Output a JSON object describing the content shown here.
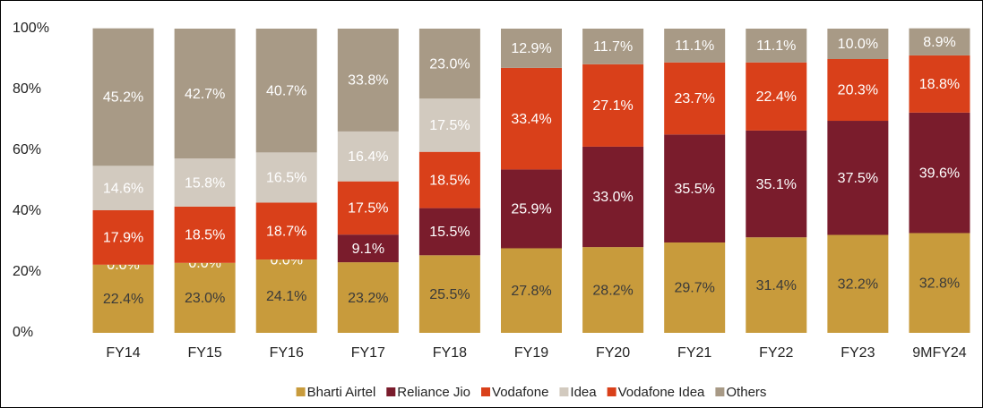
{
  "chart_data": {
    "type": "stacked_bar",
    "categories": [
      "FY14",
      "FY15",
      "FY16",
      "FY17",
      "FY18",
      "FY19",
      "FY20",
      "FY21",
      "FY22",
      "FY23",
      "9MFY24"
    ],
    "series": [
      {
        "name": "Bharti Airtel",
        "color": "#c89b3c",
        "label_color": "#3a3a3a",
        "values": [
          22.4,
          23.0,
          24.1,
          23.2,
          25.5,
          27.8,
          28.2,
          29.7,
          31.4,
          32.2,
          32.8
        ],
        "value_labels": [
          "22.4%",
          "23.0%",
          "24.1%",
          "23.2%",
          "25.5%",
          "27.8%",
          "28.2%",
          "29.7%",
          "31.4%",
          "32.2%",
          "32.8%"
        ]
      },
      {
        "name": "Reliance Jio",
        "color": "#7a1c2c",
        "label_color": "#ffffff",
        "values": [
          0.0,
          0.0,
          0.0,
          9.1,
          15.5,
          25.9,
          33.0,
          35.5,
          35.1,
          37.5,
          39.6
        ],
        "value_labels": [
          "0.0%",
          "0.0%",
          "0.0%",
          "9.1%",
          "15.5%",
          "25.9%",
          "33.0%",
          "35.5%",
          "35.1%",
          "37.5%",
          "39.6%"
        ]
      },
      {
        "name": "Vodafone",
        "color": "#d9401a",
        "label_color": "#ffffff",
        "values": [
          17.9,
          18.5,
          18.7,
          17.5,
          18.5,
          null,
          null,
          null,
          null,
          null,
          null
        ],
        "value_labels": [
          "17.9%",
          "18.5%",
          "18.7%",
          "17.5%",
          "18.5%",
          null,
          null,
          null,
          null,
          null,
          null
        ]
      },
      {
        "name": "Idea",
        "color": "#d2cabf",
        "label_color": "#ffffff",
        "values": [
          14.6,
          15.8,
          16.5,
          16.4,
          17.5,
          null,
          null,
          null,
          null,
          null,
          null
        ],
        "value_labels": [
          "14.6%",
          "15.8%",
          "16.5%",
          "16.4%",
          "17.5%",
          null,
          null,
          null,
          null,
          null,
          null
        ]
      },
      {
        "name": "Vodafone Idea",
        "color": "#d9401a",
        "label_color": "#ffffff",
        "values": [
          null,
          null,
          null,
          null,
          null,
          33.4,
          27.1,
          23.7,
          22.4,
          20.3,
          18.8
        ],
        "value_labels": [
          null,
          null,
          null,
          null,
          null,
          "33.4%",
          "27.1%",
          "23.7%",
          "22.4%",
          "20.3%",
          "18.8%"
        ]
      },
      {
        "name": "Others",
        "color": "#a89a86",
        "label_color": "#ffffff",
        "values": [
          45.2,
          42.7,
          40.7,
          33.8,
          23.0,
          12.9,
          11.7,
          11.1,
          11.1,
          10.0,
          8.9
        ],
        "value_labels": [
          "45.2%",
          "42.7%",
          "40.7%",
          "33.8%",
          "23.0%",
          "12.9%",
          "11.7%",
          "11.1%",
          "11.1%",
          "10.0%",
          "8.9%"
        ]
      }
    ],
    "ylim": [
      0,
      100
    ],
    "yticks": [
      {
        "value": 0,
        "label": "0%"
      },
      {
        "value": 20,
        "label": "20%"
      },
      {
        "value": 40,
        "label": "40%"
      },
      {
        "value": 60,
        "label": "60%"
      },
      {
        "value": 80,
        "label": "80%"
      },
      {
        "value": 100,
        "label": "100%"
      }
    ],
    "legend": "bottom"
  }
}
